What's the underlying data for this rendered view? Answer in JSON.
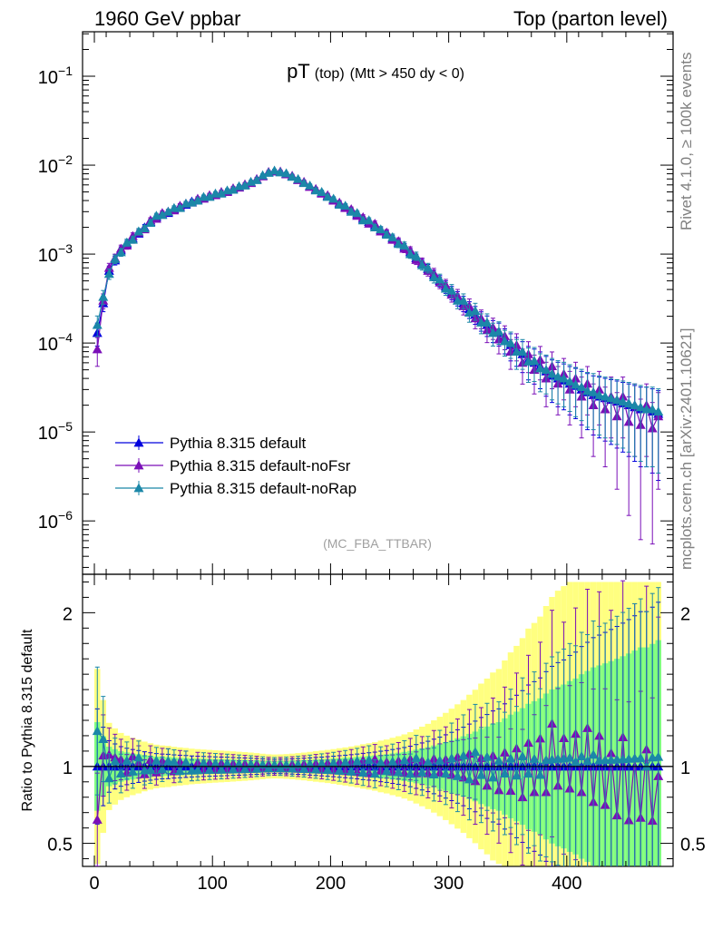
{
  "header": {
    "left": "1960 GeV ppbar",
    "right": "Top (parton level)"
  },
  "side_labels": {
    "rivet": "Rivet 4.1.0, ≥ 100k events",
    "mcplots": "mcplots.cern.ch [arXiv:2401.10621]"
  },
  "colors": {
    "default": "#0000dd",
    "noFsr": "#7a0fb8",
    "noRap": "#1b87a8",
    "band_yellow": "#ffff80",
    "band_green": "#80ff80"
  },
  "chart_data": {
    "type": "line",
    "title_main": "pT",
    "title_sub": "(top)",
    "title_cond": "(Mtt > 450 dy < 0)",
    "watermark": "(MC_FBA_TTBAR)",
    "ylabel_ratio": "Ratio to Pythia 8.315 default",
    "xlim": [
      -10,
      490
    ],
    "ylim_main_log10": [
      -6.6,
      -0.5
    ],
    "ylim_ratio": [
      0.35,
      2.25
    ],
    "x_ticks": [
      0,
      100,
      200,
      300,
      400
    ],
    "x_tick_labels": [
      "0",
      "100",
      "200",
      "300",
      "400"
    ],
    "y_ticks_main_exp": [
      -1,
      -2,
      -3,
      -4,
      -5,
      -6
    ],
    "y_tick_base": "10",
    "y_tick_exponents": [
      "−1",
      "−2",
      "−3",
      "−4",
      "−5",
      "−6"
    ],
    "ratio_ticks": [
      0.5,
      1,
      2
    ],
    "ratio_tick_labels": [
      "0.5",
      "1",
      "2"
    ],
    "legend": [
      {
        "label": "Pythia 8.315 default",
        "color": "#0000dd"
      },
      {
        "label": "Pythia 8.315 default-noFsr",
        "color": "#7a0fb8"
      },
      {
        "label": "Pythia 8.315 default-noRap",
        "color": "#1b87a8"
      }
    ],
    "x": [
      2.5,
      7.5,
      12.5,
      17.5,
      22.5,
      27.5,
      32.5,
      37.5,
      42.5,
      47.5,
      52.5,
      57.5,
      62.5,
      67.5,
      72.5,
      77.5,
      82.5,
      87.5,
      92.5,
      97.5,
      102.5,
      107.5,
      112.5,
      117.5,
      122.5,
      127.5,
      132.5,
      137.5,
      142.5,
      147.5,
      152.5,
      157.5,
      162.5,
      167.5,
      172.5,
      177.5,
      182.5,
      187.5,
      192.5,
      197.5,
      202.5,
      207.5,
      212.5,
      217.5,
      222.5,
      227.5,
      232.5,
      237.5,
      242.5,
      247.5,
      252.5,
      257.5,
      262.5,
      267.5,
      272.5,
      277.5,
      282.5,
      287.5,
      292.5,
      297.5,
      302.5,
      307.5,
      312.5,
      317.5,
      322.5,
      327.5,
      332.5,
      337.5,
      342.5,
      347.5,
      352.5,
      357.5,
      362.5,
      367.5,
      372.5,
      377.5,
      382.5,
      387.5,
      392.5,
      397.5,
      402.5,
      407.5,
      412.5,
      417.5,
      422.5,
      427.5,
      432.5,
      437.5,
      442.5,
      447.5,
      452.5,
      457.5,
      462.5,
      467.5,
      472.5,
      477.5
    ],
    "series": [
      {
        "name": "Pythia 8.315 default",
        "values": [
          0.00013,
          0.00028,
          0.00065,
          0.00085,
          0.0011,
          0.0013,
          0.0015,
          0.0017,
          0.002,
          0.0023,
          0.0026,
          0.0028,
          0.0029,
          0.0032,
          0.0034,
          0.0036,
          0.0039,
          0.0041,
          0.0043,
          0.0045,
          0.0047,
          0.0049,
          0.0051,
          0.0054,
          0.0057,
          0.006,
          0.0064,
          0.0069,
          0.0076,
          0.0083,
          0.0086,
          0.0084,
          0.008,
          0.0075,
          0.0069,
          0.0064,
          0.0058,
          0.0053,
          0.0049,
          0.0045,
          0.0041,
          0.0037,
          0.0034,
          0.0031,
          0.0028,
          0.0025,
          0.0023,
          0.0021,
          0.00185,
          0.0017,
          0.0015,
          0.00135,
          0.0012,
          0.00105,
          0.0009,
          0.00078,
          0.00068,
          0.00058,
          0.0005,
          0.00043,
          0.00037,
          0.00032,
          0.00028,
          0.00024,
          0.00021,
          0.00018,
          0.00016,
          0.00014,
          0.00013,
          0.00011,
          9.5e-05,
          8.5e-05,
          7.5e-05,
          6.5e-05,
          6e-05,
          5.5e-05,
          4.8e-05,
          4.3e-05,
          4e-05,
          3.8e-05,
          3.5e-05,
          3.3e-05,
          3e-05,
          2.8e-05,
          2.6e-05,
          2.5e-05,
          2.4e-05,
          2.3e-05,
          2.2e-05,
          2.1e-05,
          2e-05,
          1.9e-05,
          1.8e-05,
          1.8e-05,
          1.7e-05,
          1.6e-05
        ]
      },
      {
        "name": "Pythia 8.315 default-noFsr",
        "values": [
          8.5e-05,
          0.0003,
          0.0007,
          0.0009,
          0.00115,
          0.00125,
          0.0016,
          0.00175,
          0.0019,
          0.0024,
          0.0025,
          0.0029,
          0.003,
          0.0031,
          0.0035,
          0.0037,
          0.0038,
          0.0042,
          0.0042,
          0.0046,
          0.0046,
          0.005,
          0.005,
          0.0055,
          0.0056,
          0.0061,
          0.0063,
          0.007,
          0.0075,
          0.0084,
          0.0085,
          0.0085,
          0.0079,
          0.0076,
          0.0068,
          0.0065,
          0.0057,
          0.0054,
          0.0048,
          0.0046,
          0.004,
          0.0038,
          0.0033,
          0.0032,
          0.0027,
          0.0026,
          0.0022,
          0.0022,
          0.0018,
          0.00175,
          0.00145,
          0.0014,
          0.00115,
          0.0011,
          0.00086,
          0.00081,
          0.00065,
          0.00061,
          0.00048,
          0.00045,
          0.00035,
          0.00034,
          0.00026,
          0.00026,
          0.00019,
          0.00019,
          0.00014,
          0.00015,
          0.00011,
          0.00012,
          8e-05,
          9.5e-05,
          6e-05,
          7.5e-05,
          5e-05,
          6.5e-05,
          4e-05,
          5.5e-05,
          3.5e-05,
          4.5e-05,
          3e-05,
          4e-05,
          2.5e-05,
          3.5e-05,
          2e-05,
          3e-05,
          1.8e-05,
          2.5e-05,
          1.5e-05,
          2.5e-05,
          1.3e-05,
          2e-05,
          1.2e-05,
          2e-05,
          1.1e-05,
          1.5e-05
        ]
      },
      {
        "name": "Pythia 8.315 default-noRap",
        "values": [
          0.00016,
          0.00033,
          0.0006,
          0.00088,
          0.00105,
          0.00135,
          0.00145,
          0.0018,
          0.00195,
          0.00225,
          0.0027,
          0.00275,
          0.003,
          0.0033,
          0.0033,
          0.0037,
          0.0038,
          0.004,
          0.0044,
          0.0044,
          0.0048,
          0.0048,
          0.0052,
          0.0053,
          0.0058,
          0.0059,
          0.0065,
          0.0068,
          0.0077,
          0.0082,
          0.0087,
          0.0083,
          0.0081,
          0.0074,
          0.007,
          0.0063,
          0.0059,
          0.0052,
          0.005,
          0.0044,
          0.0042,
          0.0036,
          0.0035,
          0.003,
          0.0029,
          0.0024,
          0.0024,
          0.002,
          0.0019,
          0.00165,
          0.00155,
          0.0013,
          0.00125,
          0.001,
          0.00095,
          0.00075,
          0.0007,
          0.00055,
          0.00052,
          0.00041,
          0.00039,
          0.0003,
          0.0003,
          0.00022,
          0.00023,
          0.00017,
          0.00017,
          0.00013,
          0.000135,
          0.000105,
          0.0001,
          8e-05,
          8e-05,
          6.2e-05,
          6.3e-05,
          5.2e-05,
          5e-05,
          4.5e-05,
          4.2e-05,
          4e-05,
          3.7e-05,
          3.4e-05,
          3.2e-05,
          2.9e-05,
          2.8e-05,
          2.6e-05,
          2.5e-05,
          2.4e-05,
          2.3e-05,
          2.2e-05,
          2.1e-05,
          2e-05,
          1.9e-05,
          1.8e-05,
          1.8e-05,
          1.7e-05
        ]
      }
    ]
  }
}
